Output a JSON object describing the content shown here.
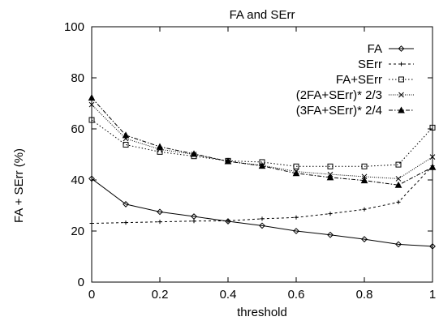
{
  "chart_data": {
    "type": "line",
    "title": "FA and SErr",
    "xlabel": "threshold",
    "ylabel": "FA + SErr (%)",
    "xlim": [
      0,
      1
    ],
    "ylim": [
      0,
      100
    ],
    "xticks": [
      "0",
      "0.2",
      "0.4",
      "0.6",
      "0.8",
      "1"
    ],
    "yticks": [
      "0",
      "20",
      "40",
      "60",
      "80",
      "100"
    ],
    "grid": false,
    "legend_position": "top-right",
    "x": [
      0,
      0.1,
      0.2,
      0.3,
      0.4,
      0.5,
      0.6,
      0.7,
      0.8,
      0.9,
      1.0
    ],
    "series": [
      {
        "name": "FA",
        "marker": "diamond",
        "dash": "",
        "values": [
          40.5,
          30.5,
          27.5,
          25.7,
          23.8,
          22.1,
          20.0,
          18.5,
          16.8,
          14.8,
          14.0
        ]
      },
      {
        "name": "SErr",
        "marker": "plus",
        "dash": "3,3",
        "values": [
          23.0,
          23.3,
          23.6,
          23.9,
          24.0,
          24.8,
          25.3,
          26.8,
          28.5,
          31.3,
          45.5
        ]
      },
      {
        "name": "FA+SErr",
        "marker": "square",
        "dash": "1.5,2.5",
        "values": [
          63.5,
          53.8,
          51.0,
          49.3,
          47.5,
          47.0,
          45.3,
          45.3,
          45.3,
          46.0,
          60.5
        ]
      },
      {
        "name": "(2FA+SErr)* 2/3",
        "marker": "x",
        "dash": "1,1.5",
        "values": [
          69.5,
          56.2,
          52.0,
          50.0,
          47.3,
          45.7,
          43.3,
          42.2,
          41.3,
          40.5,
          49.0
        ]
      },
      {
        "name": "(3FA+SErr)* 2/4",
        "marker": "triangle",
        "dash": "5,2,1.5,2",
        "values": [
          72.2,
          57.5,
          53.0,
          50.2,
          47.3,
          45.5,
          42.6,
          41.0,
          39.8,
          38.0,
          45.0
        ]
      }
    ]
  }
}
